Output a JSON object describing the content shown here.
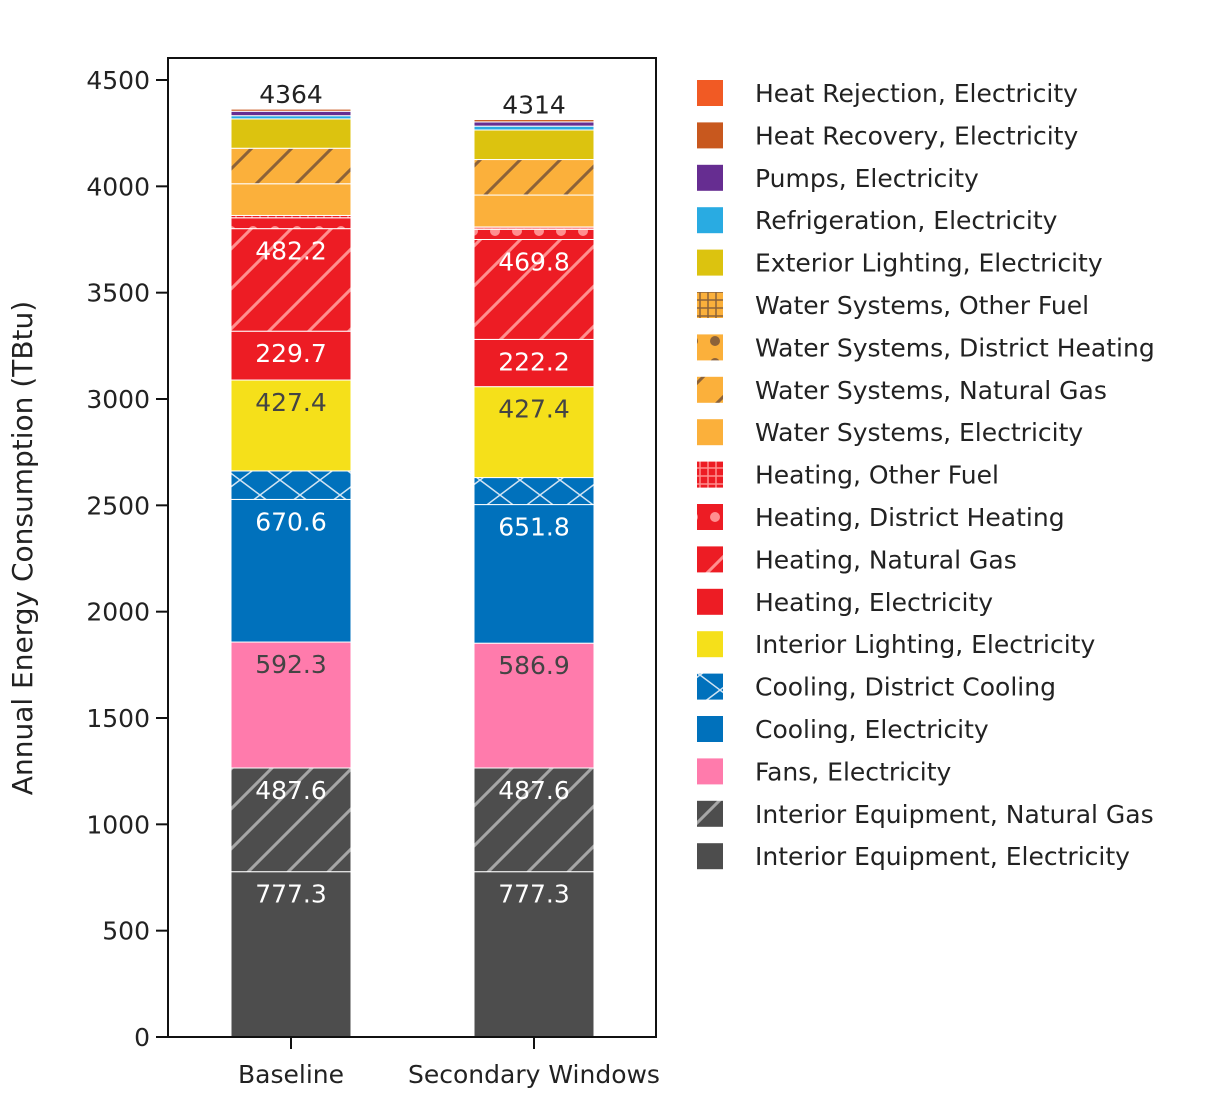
{
  "chart_data": {
    "type": "bar",
    "stacked": true,
    "title": "",
    "xlabel": "",
    "ylabel": "Annual Energy Consumption (TBtu)",
    "ylim": [
      0,
      4500
    ],
    "yticks": [
      0,
      500,
      1000,
      1500,
      2000,
      2500,
      3000,
      3500,
      4000,
      4500
    ],
    "grid": false,
    "legend_position": "right",
    "categories": [
      "Baseline",
      "Secondary Windows"
    ],
    "totals": [
      "4364",
      "4314"
    ],
    "series": [
      {
        "name": "Interior Equipment, Electricity",
        "color": "#4d4d4d",
        "pattern": "solid",
        "values": [
          777.3,
          777.3
        ]
      },
      {
        "name": "Interior Equipment, Natural Gas",
        "color": "#4d4d4d",
        "pattern": "diagonal",
        "values": [
          487.6,
          487.6
        ]
      },
      {
        "name": "Fans, Electricity",
        "color": "#ff7bac",
        "pattern": "solid",
        "values": [
          592.3,
          586.9
        ]
      },
      {
        "name": "Cooling, Electricity",
        "color": "#0071bc",
        "pattern": "solid",
        "values": [
          670.6,
          651.8
        ]
      },
      {
        "name": "Cooling, District Cooling",
        "color": "#0071bc",
        "pattern": "crosshatch",
        "values": [
          134,
          127
        ]
      },
      {
        "name": "Interior Lighting, Electricity",
        "color": "#f5e01a",
        "pattern": "solid",
        "values": [
          427.4,
          427.4
        ]
      },
      {
        "name": "Heating, Electricity",
        "color": "#ed1c24",
        "pattern": "solid",
        "values": [
          229.7,
          222.2
        ]
      },
      {
        "name": "Heating, Natural Gas",
        "color": "#ed1c24",
        "pattern": "diagonal",
        "values": [
          482.2,
          469.8
        ]
      },
      {
        "name": "Heating, District Heating",
        "color": "#ed1c24",
        "pattern": "dots",
        "values": [
          51,
          48
        ]
      },
      {
        "name": "Heating, Other Fuel",
        "color": "#ed1c24",
        "pattern": "grid",
        "values": [
          11,
          11
        ]
      },
      {
        "name": "Water Systems, Electricity",
        "color": "#fbb03b",
        "pattern": "solid",
        "values": [
          149,
          150
        ]
      },
      {
        "name": "Water Systems, Natural Gas",
        "color": "#fbb03b",
        "pattern": "diagonal",
        "values": [
          167,
          167
        ]
      },
      {
        "name": "Water Systems, District Heating",
        "color": "#fbb03b",
        "pattern": "dots",
        "values": [
          0,
          0
        ]
      },
      {
        "name": "Water Systems, Other Fuel",
        "color": "#fbb03b",
        "pattern": "grid",
        "values": [
          0,
          0
        ]
      },
      {
        "name": "Exterior Lighting, Electricity",
        "color": "#dcc30f",
        "pattern": "solid",
        "values": [
          138,
          139
        ]
      },
      {
        "name": "Refrigeration, Electricity",
        "color": "#29abe2",
        "pattern": "solid",
        "values": [
          15,
          18
        ]
      },
      {
        "name": "Pumps, Electricity",
        "color": "#662d91",
        "pattern": "solid",
        "values": [
          21,
          20
        ]
      },
      {
        "name": "Heat Recovery, Electricity",
        "color": "#c8581e",
        "pattern": "solid",
        "values": [
          10,
          11
        ]
      },
      {
        "name": "Heat Rejection, Electricity",
        "color": "#f15a24",
        "pattern": "solid",
        "values": [
          0,
          0
        ]
      }
    ]
  }
}
